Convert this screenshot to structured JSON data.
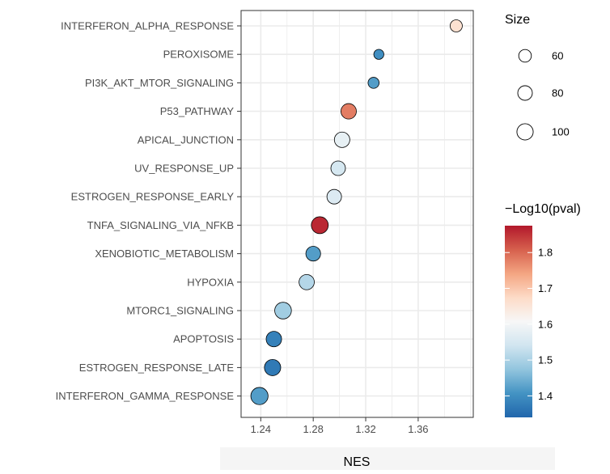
{
  "chart_data": {
    "type": "scatter",
    "title": "",
    "xlabel": "NES",
    "ylabel": "",
    "xlim": [
      1.225,
      1.402
    ],
    "x_ticks": [
      1.24,
      1.28,
      1.32,
      1.36
    ],
    "x_tick_labels": [
      "1.24",
      "1.28",
      "1.32",
      "1.36"
    ],
    "grid": true,
    "categories": [
      "INTERFERON_ALPHA_RESPONSE",
      "PEROXISOME",
      "PI3K_AKT_MTOR_SIGNALING",
      "P53_PATHWAY",
      "APICAL_JUNCTION",
      "UV_RESPONSE_UP",
      "ESTROGEN_RESPONSE_EARLY",
      "TNFA_SIGNALING_VIA_NFKB",
      "XENOBIOTIC_METABOLISM",
      "HYPOXIA",
      "MTORC1_SIGNALING",
      "APOPTOSIS",
      "ESTROGEN_RESPONSE_LATE",
      "INTERFERON_GAMMA_RESPONSE"
    ],
    "points": [
      {
        "term": "INTERFERON_ALPHA_RESPONSE",
        "nes": 1.389,
        "size": 56,
        "neglog10p": 1.66
      },
      {
        "term": "PEROXISOME",
        "nes": 1.33,
        "size": 38,
        "neglog10p": 1.4
      },
      {
        "term": "PI3K_AKT_MTOR_SIGNALING",
        "nes": 1.326,
        "size": 46,
        "neglog10p": 1.42
      },
      {
        "term": "P53_PATHWAY",
        "nes": 1.307,
        "size": 90,
        "neglog10p": 1.78
      },
      {
        "term": "APICAL_JUNCTION",
        "nes": 1.302,
        "size": 90,
        "neglog10p": 1.58
      },
      {
        "term": "UV_RESPONSE_UP",
        "nes": 1.299,
        "size": 80,
        "neglog10p": 1.55
      },
      {
        "term": "ESTROGEN_RESPONSE_EARLY",
        "nes": 1.296,
        "size": 80,
        "neglog10p": 1.56
      },
      {
        "term": "TNFA_SIGNALING_VIA_NFKB",
        "nes": 1.285,
        "size": 108,
        "neglog10p": 1.86
      },
      {
        "term": "XENOBIOTIC_METABOLISM",
        "nes": 1.28,
        "size": 82,
        "neglog10p": 1.42
      },
      {
        "term": "HYPOXIA",
        "nes": 1.275,
        "size": 88,
        "neglog10p": 1.51
      },
      {
        "term": "MTORC1_SIGNALING",
        "nes": 1.257,
        "size": 105,
        "neglog10p": 1.49
      },
      {
        "term": "APOPTOSIS",
        "nes": 1.25,
        "size": 90,
        "neglog10p": 1.38
      },
      {
        "term": "ESTROGEN_RESPONSE_LATE",
        "nes": 1.249,
        "size": 100,
        "neglog10p": 1.37
      },
      {
        "term": "INTERFERON_GAMMA_RESPONSE",
        "nes": 1.239,
        "size": 112,
        "neglog10p": 1.42
      }
    ],
    "size_legend": {
      "title": "Size",
      "values": [
        60,
        80,
        100
      ],
      "labels": [
        "60",
        "80",
        "100"
      ]
    },
    "color_legend": {
      "title": "−Log10(pval)",
      "range": [
        1.34,
        1.875
      ],
      "ticks": [
        1.4,
        1.5,
        1.6,
        1.7,
        1.8
      ],
      "tick_labels": [
        "1.4",
        "1.5",
        "1.6",
        "1.7",
        "1.8"
      ],
      "colors": [
        "#2166ac",
        "#4393c3",
        "#92c5de",
        "#d1e5f0",
        "#f7f7f7",
        "#fddbc7",
        "#f4a582",
        "#d6604d",
        "#b2182b"
      ]
    }
  }
}
